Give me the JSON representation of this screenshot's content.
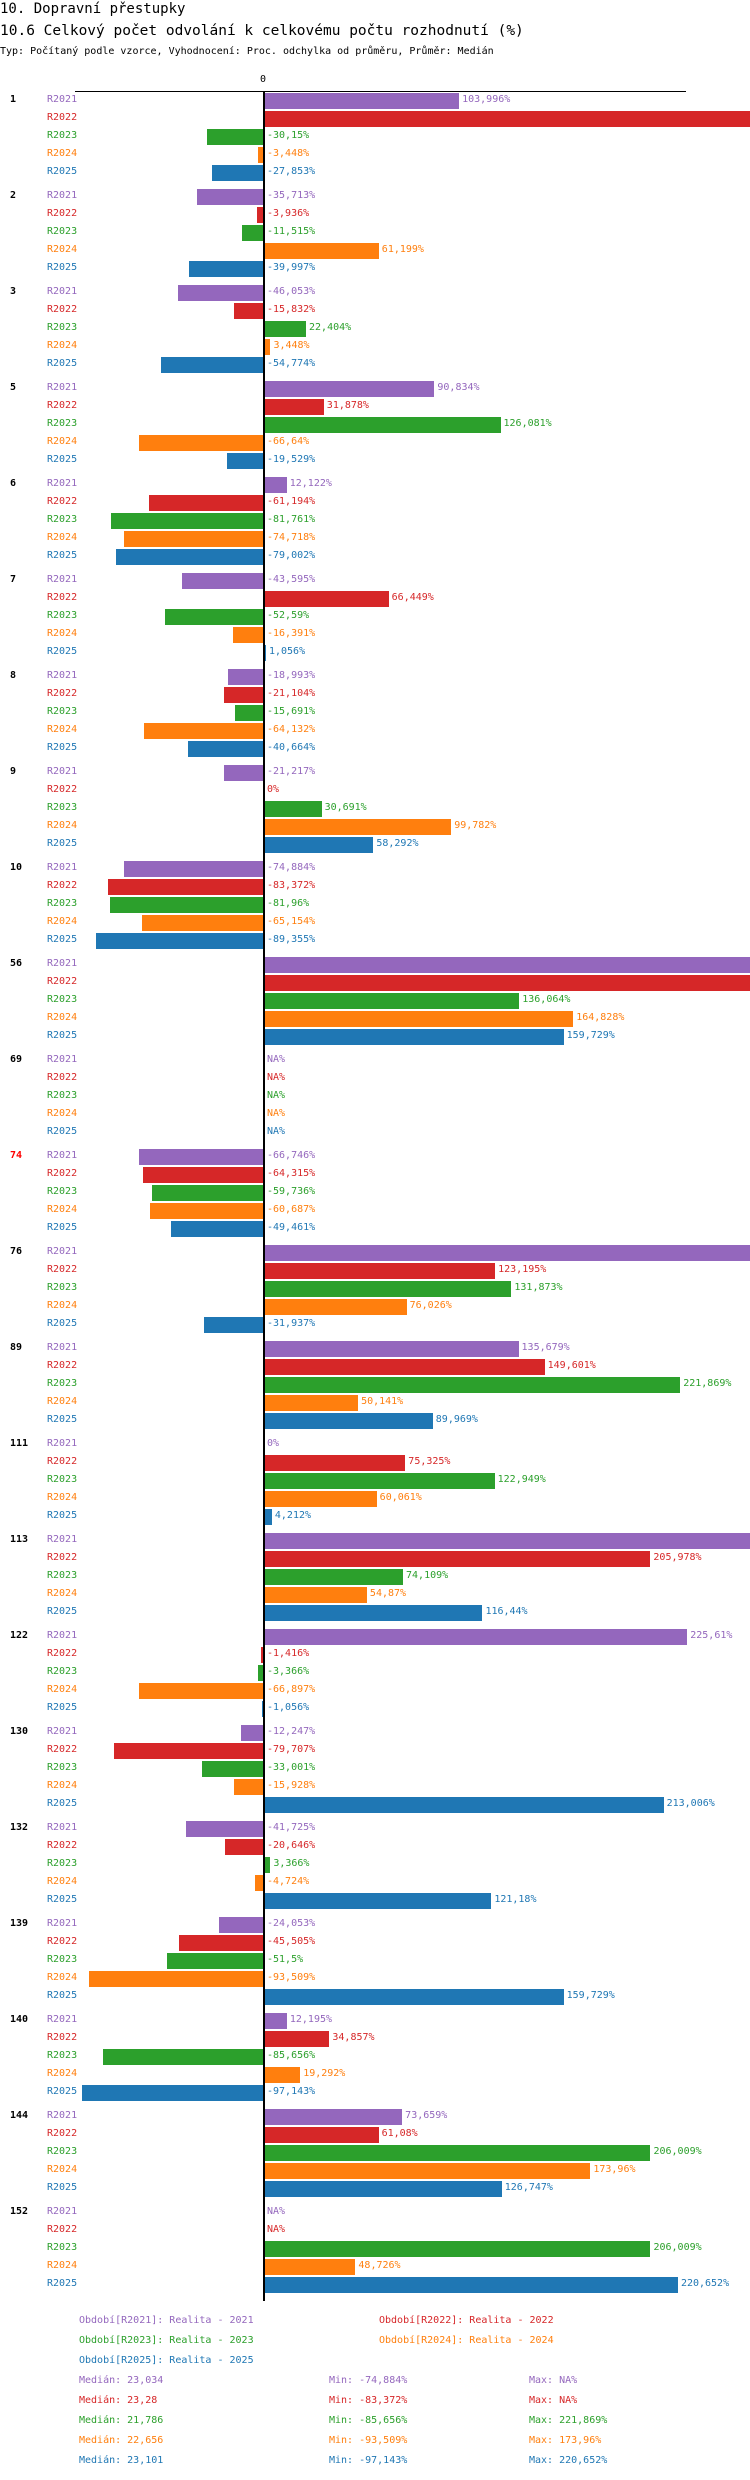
{
  "header": {
    "title": "10. Dopravní přestupky",
    "subtitle": "10.6 Celkový počet odvolání k celkovému počtu rozhodnutí (%)",
    "typ": "Typ: Počítaný podle vzorce, Vyhodnocení: Proc. odchylka od průměru, Průměr: Medián"
  },
  "colors": {
    "R2021": "#9467bd",
    "R2022": "#d62728",
    "R2023": "#2ca02c",
    "R2024": "#ff7f0e",
    "R2025": "#1f77b4",
    "highlight_group": "#ff0000"
  },
  "chart_data": {
    "type": "bar",
    "orientation": "horizontal",
    "zero_tick": "0",
    "series_names": [
      "R2021",
      "R2022",
      "R2023",
      "R2024",
      "R2025"
    ],
    "note": "null value with null label = bar exceeds visible range (clipped, unlabeled); null value with NA% label = missing",
    "groups": [
      {
        "id": "1",
        "values": [
          103.996,
          null,
          -30.15,
          -3.448,
          -27.853
        ],
        "labels": [
          "103,996%",
          null,
          "-30,15%",
          "-3,448%",
          "-27,853%"
        ]
      },
      {
        "id": "2",
        "values": [
          -35.713,
          -3.936,
          -11.515,
          61.199,
          -39.997
        ],
        "labels": [
          "-35,713%",
          "-3,936%",
          "-11,515%",
          "61,199%",
          "-39,997%"
        ]
      },
      {
        "id": "3",
        "values": [
          -46.053,
          -15.832,
          22.404,
          3.448,
          -54.774
        ],
        "labels": [
          "-46,053%",
          "-15,832%",
          "22,404%",
          "3,448%",
          "-54,774%"
        ]
      },
      {
        "id": "5",
        "values": [
          90.834,
          31.878,
          126.081,
          -66.64,
          -19.529
        ],
        "labels": [
          "90,834%",
          "31,878%",
          "126,081%",
          "-66,64%",
          "-19,529%"
        ]
      },
      {
        "id": "6",
        "values": [
          12.122,
          -61.194,
          -81.761,
          -74.718,
          -79.002
        ],
        "labels": [
          "12,122%",
          "-61,194%",
          "-81,761%",
          "-74,718%",
          "-79,002%"
        ]
      },
      {
        "id": "7",
        "values": [
          -43.595,
          66.449,
          -52.59,
          -16.391,
          1.056
        ],
        "labels": [
          "-43,595%",
          "66,449%",
          "-52,59%",
          "-16,391%",
          "1,056%"
        ]
      },
      {
        "id": "8",
        "values": [
          -18.993,
          -21.104,
          -15.691,
          -64.132,
          -40.664
        ],
        "labels": [
          "-18,993%",
          "-21,104%",
          "-15,691%",
          "-64,132%",
          "-40,664%"
        ]
      },
      {
        "id": "9",
        "values": [
          -21.217,
          0,
          30.691,
          99.782,
          58.292
        ],
        "labels": [
          "-21,217%",
          "0%",
          "30,691%",
          "99,782%",
          "58,292%"
        ]
      },
      {
        "id": "10",
        "values": [
          -74.884,
          -83.372,
          -81.96,
          -65.154,
          -89.355
        ],
        "labels": [
          "-74,884%",
          "-83,372%",
          "-81,96%",
          "-65,154%",
          "-89,355%"
        ]
      },
      {
        "id": "56",
        "values": [
          null,
          null,
          136.064,
          164.828,
          159.729
        ],
        "labels": [
          null,
          null,
          "136,064%",
          "164,828%",
          "159,729%"
        ]
      },
      {
        "id": "69",
        "values": [
          null,
          null,
          null,
          null,
          null
        ],
        "labels": [
          "NA%",
          "NA%",
          "NA%",
          "NA%",
          "NA%"
        ]
      },
      {
        "id": "74",
        "highlight": true,
        "values": [
          -66.746,
          -64.315,
          -59.736,
          -60.687,
          -49.461
        ],
        "labels": [
          "-66,746%",
          "-64,315%",
          "-59,736%",
          "-60,687%",
          "-49,461%"
        ]
      },
      {
        "id": "76",
        "values": [
          null,
          123.195,
          131.873,
          76.026,
          -31.937
        ],
        "labels": [
          null,
          "123,195%",
          "131,873%",
          "76,026%",
          "-31,937%"
        ]
      },
      {
        "id": "89",
        "values": [
          135.679,
          149.601,
          221.869,
          50.141,
          89.969
        ],
        "labels": [
          "135,679%",
          "149,601%",
          "221,869%",
          "50,141%",
          "89,969%"
        ]
      },
      {
        "id": "111",
        "values": [
          0,
          75.325,
          122.949,
          60.061,
          4.212
        ],
        "labels": [
          "0%",
          "75,325%",
          "122,949%",
          "60,061%",
          "4,212%"
        ]
      },
      {
        "id": "113",
        "values": [
          null,
          205.978,
          74.109,
          54.87,
          116.44
        ],
        "labels": [
          null,
          "205,978%",
          "74,109%",
          "54,87%",
          "116,44%"
        ]
      },
      {
        "id": "122",
        "values": [
          225.61,
          -1.416,
          -3.366,
          -66.897,
          -1.056
        ],
        "labels": [
          "225,61%",
          "-1,416%",
          "-3,366%",
          "-66,897%",
          "-1,056%"
        ]
      },
      {
        "id": "130",
        "values": [
          -12.247,
          -79.707,
          -33.001,
          -15.928,
          213.006
        ],
        "labels": [
          "-12,247%",
          "-79,707%",
          "-33,001%",
          "-15,928%",
          "213,006%"
        ]
      },
      {
        "id": "132",
        "values": [
          -41.725,
          -20.646,
          3.366,
          -4.724,
          121.18
        ],
        "labels": [
          "-41,725%",
          "-20,646%",
          "3,366%",
          "-4,724%",
          "121,18%"
        ]
      },
      {
        "id": "139",
        "values": [
          -24.053,
          -45.505,
          -51.5,
          -93.509,
          159.729
        ],
        "labels": [
          "-24,053%",
          "-45,505%",
          "-51,5%",
          "-93,509%",
          "159,729%"
        ]
      },
      {
        "id": "140",
        "values": [
          12.195,
          34.857,
          -85.656,
          19.292,
          -97.143
        ],
        "labels": [
          "12,195%",
          "34,857%",
          "-85,656%",
          "19,292%",
          "-97,143%"
        ]
      },
      {
        "id": "144",
        "values": [
          73.659,
          61.08,
          206.009,
          173.96,
          126.747
        ],
        "labels": [
          "73,659%",
          "61,08%",
          "206,009%",
          "173,96%",
          "126,747%"
        ]
      },
      {
        "id": "152",
        "values": [
          null,
          null,
          206.009,
          48.726,
          220.652
        ],
        "labels": [
          "NA%",
          "NA%",
          "206,009%",
          "48,726%",
          "220,652%"
        ]
      }
    ],
    "legend": [
      {
        "series": "R2021",
        "text": "Období[R2021]: Realita - 2021"
      },
      {
        "series": "R2022",
        "text": "Období[R2022]: Realita - 2022"
      },
      {
        "series": "R2023",
        "text": "Období[R2023]: Realita - 2023"
      },
      {
        "series": "R2024",
        "text": "Období[R2024]: Realita - 2024"
      },
      {
        "series": "R2025",
        "text": "Období[R2025]: Realita - 2025"
      }
    ],
    "stats": [
      {
        "series": "R2021",
        "median": "Medián: 23,034",
        "min": "Min: -74,884%",
        "max": "Max: NA%"
      },
      {
        "series": "R2022",
        "median": "Medián: 23,28",
        "min": "Min: -83,372%",
        "max": "Max: NA%"
      },
      {
        "series": "R2023",
        "median": "Medián: 21,786",
        "min": "Min: -85,656%",
        "max": "Max: 221,869%"
      },
      {
        "series": "R2024",
        "median": "Medián: 22,656",
        "min": "Min: -93,509%",
        "max": "Max: 173,96%"
      },
      {
        "series": "R2025",
        "median": "Medián: 23,101",
        "min": "Min: -97,143%",
        "max": "Max: 220,652%"
      }
    ]
  }
}
